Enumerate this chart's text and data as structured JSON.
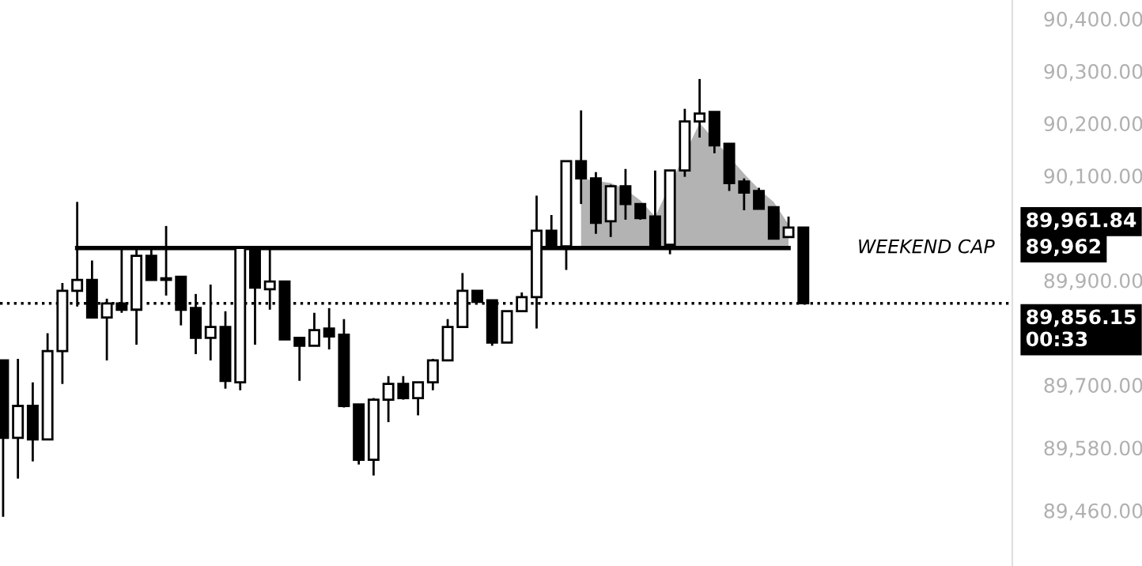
{
  "chart_data": {
    "type": "candlestick",
    "categories": [
      null,
      null,
      null,
      null,
      null,
      null,
      null,
      null,
      null,
      null,
      null,
      null,
      null,
      null,
      null,
      null,
      null,
      null,
      null,
      null,
      null,
      null,
      null,
      null,
      null,
      null,
      null,
      null,
      null,
      null,
      null,
      null,
      null,
      null,
      null,
      null,
      null,
      null,
      null,
      null,
      null,
      null,
      null,
      null,
      null,
      null,
      null,
      null,
      null,
      null,
      null,
      null,
      null,
      null,
      null
    ],
    "ohlc": [
      [
        89747,
        89747,
        89448,
        89599
      ],
      [
        89599,
        89750,
        89521,
        89660
      ],
      [
        89660,
        89705,
        89554,
        89596
      ],
      [
        89596,
        89799,
        89596,
        89765
      ],
      [
        89765,
        89895,
        89702,
        89880
      ],
      [
        89880,
        90050,
        89850,
        89901
      ],
      [
        89901,
        89938,
        89829,
        89829
      ],
      [
        89829,
        89865,
        89747,
        89856
      ],
      [
        89856,
        89962,
        89838,
        89844
      ],
      [
        89844,
        89962,
        89777,
        89947
      ],
      [
        89947,
        89962,
        89901,
        89901
      ],
      [
        89904,
        90004,
        89871,
        89901
      ],
      [
        89907,
        89907,
        89814,
        89844
      ],
      [
        89847,
        89874,
        89759,
        89790
      ],
      [
        89790,
        89892,
        89747,
        89811
      ],
      [
        89811,
        89841,
        89693,
        89708
      ],
      [
        89705,
        89962,
        89690,
        89962
      ],
      [
        89962,
        89962,
        89777,
        89886
      ],
      [
        89883,
        89962,
        89844,
        89898
      ],
      [
        89898,
        89898,
        89787,
        89787
      ],
      [
        89790,
        89790,
        89708,
        89775
      ],
      [
        89775,
        89838,
        89775,
        89805
      ],
      [
        89808,
        89847,
        89768,
        89793
      ],
      [
        89796,
        89826,
        89657,
        89660
      ],
      [
        89663,
        89663,
        89548,
        89557
      ],
      [
        89557,
        89675,
        89527,
        89672
      ],
      [
        89672,
        89717,
        89629,
        89702
      ],
      [
        89702,
        89717,
        89672,
        89675
      ],
      [
        89675,
        89705,
        89642,
        89705
      ],
      [
        89705,
        89750,
        89690,
        89747
      ],
      [
        89747,
        89826,
        89747,
        89811
      ],
      [
        89811,
        89914,
        89811,
        89880
      ],
      [
        89880,
        89880,
        89859,
        89859
      ],
      [
        89862,
        89862,
        89775,
        89781
      ],
      [
        89781,
        89841,
        89781,
        89841
      ],
      [
        89841,
        89877,
        89841,
        89868
      ],
      [
        89868,
        90062,
        89808,
        89995
      ],
      [
        89995,
        90025,
        89965,
        89965
      ],
      [
        89965,
        90128,
        89920,
        90128
      ],
      [
        90128,
        90225,
        90046,
        90095
      ],
      [
        90095,
        90107,
        89989,
        90010
      ],
      [
        90013,
        90083,
        89983,
        90080
      ],
      [
        90080,
        90113,
        90016,
        90046
      ],
      [
        90046,
        90046,
        90016,
        90019
      ],
      [
        90022,
        90110,
        89968,
        89968
      ],
      [
        89968,
        90110,
        89950,
        90110
      ],
      [
        90110,
        90228,
        90098,
        90204
      ],
      [
        90204,
        90285,
        90173,
        90219
      ],
      [
        90222,
        90222,
        90143,
        90158
      ],
      [
        90161,
        90161,
        90071,
        90086
      ],
      [
        90089,
        90095,
        90034,
        90068
      ],
      [
        90071,
        90077,
        90037,
        90037
      ],
      [
        90040,
        90040,
        89980,
        89980
      ],
      [
        89983,
        90022,
        89983,
        90001
      ],
      [
        90001,
        90001,
        89856.15,
        89856.15
      ]
    ],
    "series": [
      {
        "type": "area",
        "color": "#b3b3b3",
        "values": [
          null,
          null,
          null,
          null,
          null,
          null,
          null,
          null,
          null,
          null,
          null,
          null,
          null,
          null,
          null,
          null,
          null,
          null,
          null,
          null,
          null,
          null,
          null,
          null,
          null,
          null,
          null,
          null,
          null,
          null,
          null,
          null,
          null,
          null,
          null,
          null,
          null,
          null,
          null,
          90095,
          null,
          90086,
          90074,
          90053,
          90022,
          null,
          null,
          90201,
          null,
          null,
          90104,
          90074,
          90050,
          90007,
          null
        ]
      },
      {
        "type": "line",
        "color": "#000000",
        "values": [
          null,
          null,
          null,
          null,
          null,
          89962,
          89962,
          89962,
          89962,
          89962,
          89962,
          89962,
          89962,
          89962,
          89962,
          89962,
          89962,
          89962,
          89962,
          89962,
          89962,
          89962,
          89962,
          89962,
          89962,
          89962,
          89962,
          89962,
          89962,
          89962,
          89962,
          89962,
          89962,
          89962,
          89962,
          89962,
          89962,
          89962,
          89962,
          89962,
          89962,
          89962,
          89962,
          89962,
          89962,
          89962,
          89962,
          89962,
          89962,
          89962,
          89962,
          89962,
          89962,
          89962,
          null
        ]
      }
    ],
    "ylim": [
      89354,
      90436
    ],
    "yticks": [
      {
        "value": 90400,
        "label": "90,400.00"
      },
      {
        "value": 90300,
        "label": "90,300.00"
      },
      {
        "value": 90200,
        "label": "90,200.00"
      },
      {
        "value": 90100,
        "label": "90,100.00"
      },
      {
        "value": 89900,
        "label": "89,900.00"
      },
      {
        "value": 89700,
        "label": "89,700.00"
      },
      {
        "value": 89580,
        "label": "89,580.00"
      },
      {
        "value": 89460,
        "label": "89,460.00"
      }
    ],
    "ref_lines": [
      {
        "axis": "y",
        "value": 89856.15,
        "label": "89,856.15\n00:33",
        "line_style": "dotted",
        "color": "#000000"
      }
    ],
    "annotations": [
      "WEEKEND CAP",
      "89,962",
      "89,961.84"
    ],
    "grid": false,
    "legend": false,
    "tick_labels": "y"
  }
}
